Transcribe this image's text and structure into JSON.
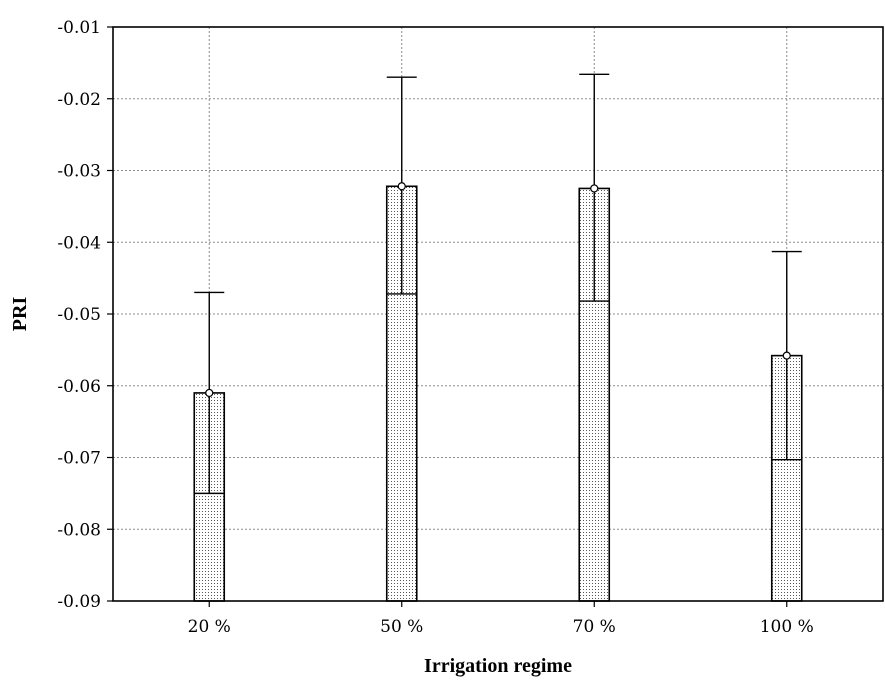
{
  "chart_data": {
    "type": "bar",
    "title": "",
    "xlabel": "Irrigation regime",
    "ylabel": "PRI",
    "categories": [
      "20 %",
      "50 %",
      "70 %",
      "100 %"
    ],
    "values": [
      -0.061,
      -0.0322,
      -0.0325,
      -0.0558
    ],
    "error_upper": [
      -0.047,
      -0.017,
      -0.0166,
      -0.0413
    ],
    "error_lower": [
      -0.075,
      -0.0472,
      -0.0482,
      -0.0703
    ],
    "ylim": [
      -0.09,
      -0.01
    ],
    "yticks": [
      "-0.01",
      "-0.02",
      "-0.03",
      "-0.04",
      "-0.05",
      "-0.06",
      "-0.07",
      "-0.08",
      "-0.09"
    ],
    "ytick_values": [
      -0.01,
      -0.02,
      -0.03,
      -0.04,
      -0.05,
      -0.06,
      -0.07,
      -0.08,
      -0.09
    ],
    "grid": true,
    "legend": "none",
    "bar_fill": "dotted",
    "colors": {
      "bar_stroke": "#000000",
      "grid": "#8c8c8c",
      "background": "#ffffff"
    }
  }
}
